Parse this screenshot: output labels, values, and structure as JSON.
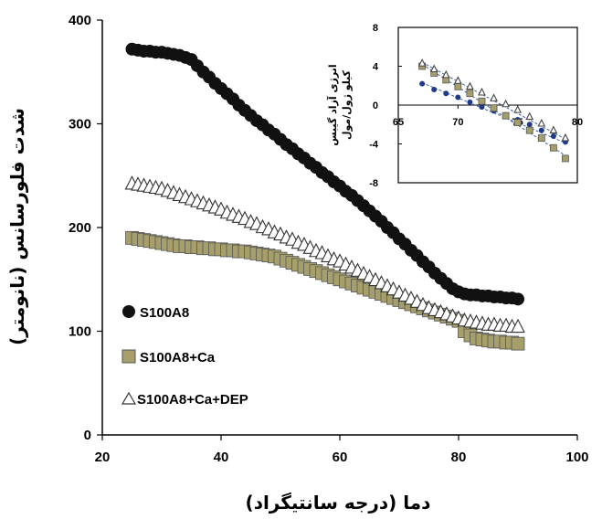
{
  "chart_data": [
    {
      "type": "scatter",
      "xlabel": "دما (درجه سانتیگراد)",
      "ylabel": "شدت فلورسانس (نانومتر)",
      "xlim": [
        20,
        100
      ],
      "ylim": [
        0,
        400
      ],
      "xticks": [
        20,
        40,
        60,
        80,
        100
      ],
      "yticks": [
        0,
        100,
        200,
        300,
        400
      ],
      "grid": false,
      "legend_position": "bottom-left",
      "series": [
        {
          "name": "S100A8",
          "marker": "filled-circle",
          "color": "#111111",
          "x": [
            25,
            26,
            27,
            28,
            29,
            30,
            31,
            32,
            33,
            34,
            35,
            36,
            37,
            38,
            39,
            40,
            41,
            42,
            43,
            44,
            45,
            46,
            47,
            48,
            49,
            50,
            51,
            52,
            53,
            54,
            55,
            56,
            57,
            58,
            59,
            60,
            61,
            62,
            63,
            64,
            65,
            66,
            67,
            68,
            69,
            70,
            71,
            72,
            73,
            74,
            75,
            76,
            77,
            78,
            79,
            80,
            81,
            82,
            83,
            84,
            85,
            86,
            87,
            88,
            89,
            90
          ],
          "y": [
            372,
            371,
            370,
            370,
            369,
            369,
            368,
            367,
            366,
            364,
            362,
            356,
            350,
            345,
            339,
            334,
            329,
            324,
            318,
            313,
            308,
            303,
            299,
            294,
            290,
            285,
            280,
            276,
            271,
            267,
            262,
            258,
            253,
            249,
            244,
            240,
            235,
            231,
            226,
            221,
            216,
            211,
            206,
            200,
            195,
            189,
            184,
            178,
            173,
            167,
            162,
            156,
            151,
            146,
            141,
            138,
            136,
            135,
            135,
            134,
            134,
            133,
            133,
            132,
            132,
            131
          ]
        },
        {
          "name": "S100A8+Ca",
          "marker": "filled-square",
          "color": "#a69f6c",
          "x": [
            25,
            26,
            27,
            28,
            29,
            30,
            31,
            32,
            33,
            34,
            35,
            36,
            37,
            38,
            39,
            40,
            41,
            42,
            43,
            44,
            45,
            46,
            47,
            48,
            49,
            50,
            51,
            52,
            53,
            54,
            55,
            56,
            57,
            58,
            59,
            60,
            61,
            62,
            63,
            64,
            65,
            66,
            67,
            68,
            69,
            70,
            71,
            72,
            73,
            74,
            75,
            76,
            77,
            78,
            79,
            80,
            81,
            82,
            83,
            84,
            85,
            86,
            87,
            88,
            89,
            90
          ],
          "y": [
            190,
            189,
            188,
            187,
            186,
            185,
            184,
            183,
            182,
            182,
            181,
            181,
            180,
            180,
            179,
            179,
            178,
            178,
            177,
            177,
            176,
            175,
            174,
            173,
            172,
            170,
            168,
            166,
            164,
            162,
            160,
            158,
            156,
            154,
            152,
            150,
            148,
            146,
            144,
            142,
            140,
            138,
            136,
            134,
            132,
            130,
            128,
            126,
            124,
            122,
            120,
            118,
            116,
            114,
            112,
            110,
            100,
            96,
            93,
            92,
            91,
            90,
            90,
            89,
            89,
            88
          ]
        },
        {
          "name": "S100A8+Ca+DEP",
          "marker": "open-triangle",
          "color": "#333333",
          "x": [
            25,
            26,
            27,
            28,
            29,
            30,
            31,
            32,
            33,
            34,
            35,
            36,
            37,
            38,
            39,
            40,
            41,
            42,
            43,
            44,
            45,
            46,
            47,
            48,
            49,
            50,
            51,
            52,
            53,
            54,
            55,
            56,
            57,
            58,
            59,
            60,
            61,
            62,
            63,
            64,
            65,
            66,
            67,
            68,
            69,
            70,
            71,
            72,
            73,
            74,
            75,
            76,
            77,
            78,
            79,
            80,
            81,
            82,
            83,
            84,
            85,
            86,
            87,
            88,
            89,
            90
          ],
          "y": [
            242,
            241,
            240,
            239,
            238,
            237,
            235,
            233,
            231,
            229,
            227,
            225,
            223,
            221,
            219,
            217,
            214,
            212,
            210,
            208,
            205,
            203,
            200,
            198,
            195,
            193,
            190,
            188,
            185,
            183,
            180,
            177,
            175,
            172,
            169,
            167,
            164,
            161,
            158,
            155,
            152,
            149,
            146,
            143,
            140,
            137,
            134,
            131,
            128,
            125,
            122,
            120,
            118,
            116,
            114,
            112,
            110,
            109,
            108,
            107,
            106,
            106,
            105,
            105,
            104,
            104
          ]
        }
      ]
    },
    {
      "type": "scatter",
      "role": "inset",
      "xlabel": "",
      "ylabel": "کیلو ژول/مول",
      "ylabel2": "انرژی آزاد گیبس",
      "xlim": [
        65,
        80
      ],
      "ylim": [
        -8,
        8
      ],
      "xticks": [
        65,
        70,
        75,
        80
      ],
      "yticks": [
        8,
        4,
        0,
        -4,
        -8
      ],
      "zero_line": true,
      "series": [
        {
          "marker": "filled-circle",
          "color": "#1f3a8a",
          "x": [
            67,
            68,
            69,
            70,
            71,
            72,
            73,
            74,
            75,
            76,
            77,
            78,
            79
          ],
          "y": [
            2.2,
            1.6,
            1.2,
            0.8,
            0.3,
            -0.2,
            -0.6,
            -1.0,
            -1.5,
            -2.0,
            -2.6,
            -3.2,
            -3.8
          ],
          "fit": [
            [
              67,
              2.3
            ],
            [
              79,
              -3.9
            ]
          ]
        },
        {
          "marker": "filled-square",
          "color": "#a69f6c",
          "x": [
            67,
            68,
            69,
            70,
            71,
            72,
            73,
            74,
            75,
            76,
            77,
            78,
            79
          ],
          "y": [
            4.0,
            3.3,
            2.6,
            1.9,
            1.2,
            0.4,
            -0.3,
            -1.1,
            -1.8,
            -2.6,
            -3.4,
            -4.4,
            -5.5
          ],
          "fit": [
            [
              67,
              4.2
            ],
            [
              79,
              -5.2
            ]
          ]
        },
        {
          "marker": "open-triangle",
          "color": "#444444",
          "x": [
            67,
            68,
            69,
            70,
            71,
            72,
            73,
            74,
            75,
            76,
            77,
            78,
            79
          ],
          "y": [
            4.3,
            3.7,
            3.1,
            2.5,
            1.9,
            1.3,
            0.7,
            0.1,
            -0.5,
            -1.2,
            -1.9,
            -2.6,
            -3.4
          ],
          "fit": [
            [
              67,
              4.4
            ],
            [
              79,
              -3.5
            ]
          ]
        }
      ]
    }
  ]
}
